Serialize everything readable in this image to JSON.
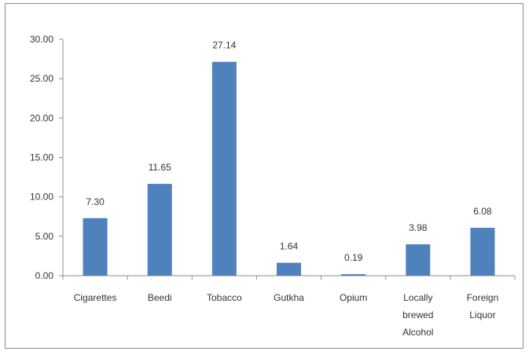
{
  "chart_data": {
    "type": "bar",
    "categories": [
      [
        "Cigarettes"
      ],
      [
        "Beedi"
      ],
      [
        "Tobacco"
      ],
      [
        "Gutkha"
      ],
      [
        "Opium"
      ],
      [
        "Locally",
        "brewed",
        "Alcohol"
      ],
      [
        "Foreign",
        "Liquor"
      ]
    ],
    "values": [
      7.3,
      11.65,
      27.14,
      1.64,
      0.19,
      3.98,
      6.08
    ],
    "data_labels": [
      "7.30",
      "11.65",
      "27.14",
      "1.64",
      "0.19",
      "3.98",
      "6.08"
    ],
    "y_ticks": [
      "0.00",
      "5.00",
      "10.00",
      "15.00",
      "20.00",
      "25.00",
      "30.00"
    ],
    "ylim": [
      0,
      30
    ],
    "title": "",
    "xlabel": "",
    "ylabel": "",
    "grid": false,
    "legend": false,
    "colors": {
      "bar": "#4f81bd",
      "axis": "#8c8c8c"
    }
  }
}
